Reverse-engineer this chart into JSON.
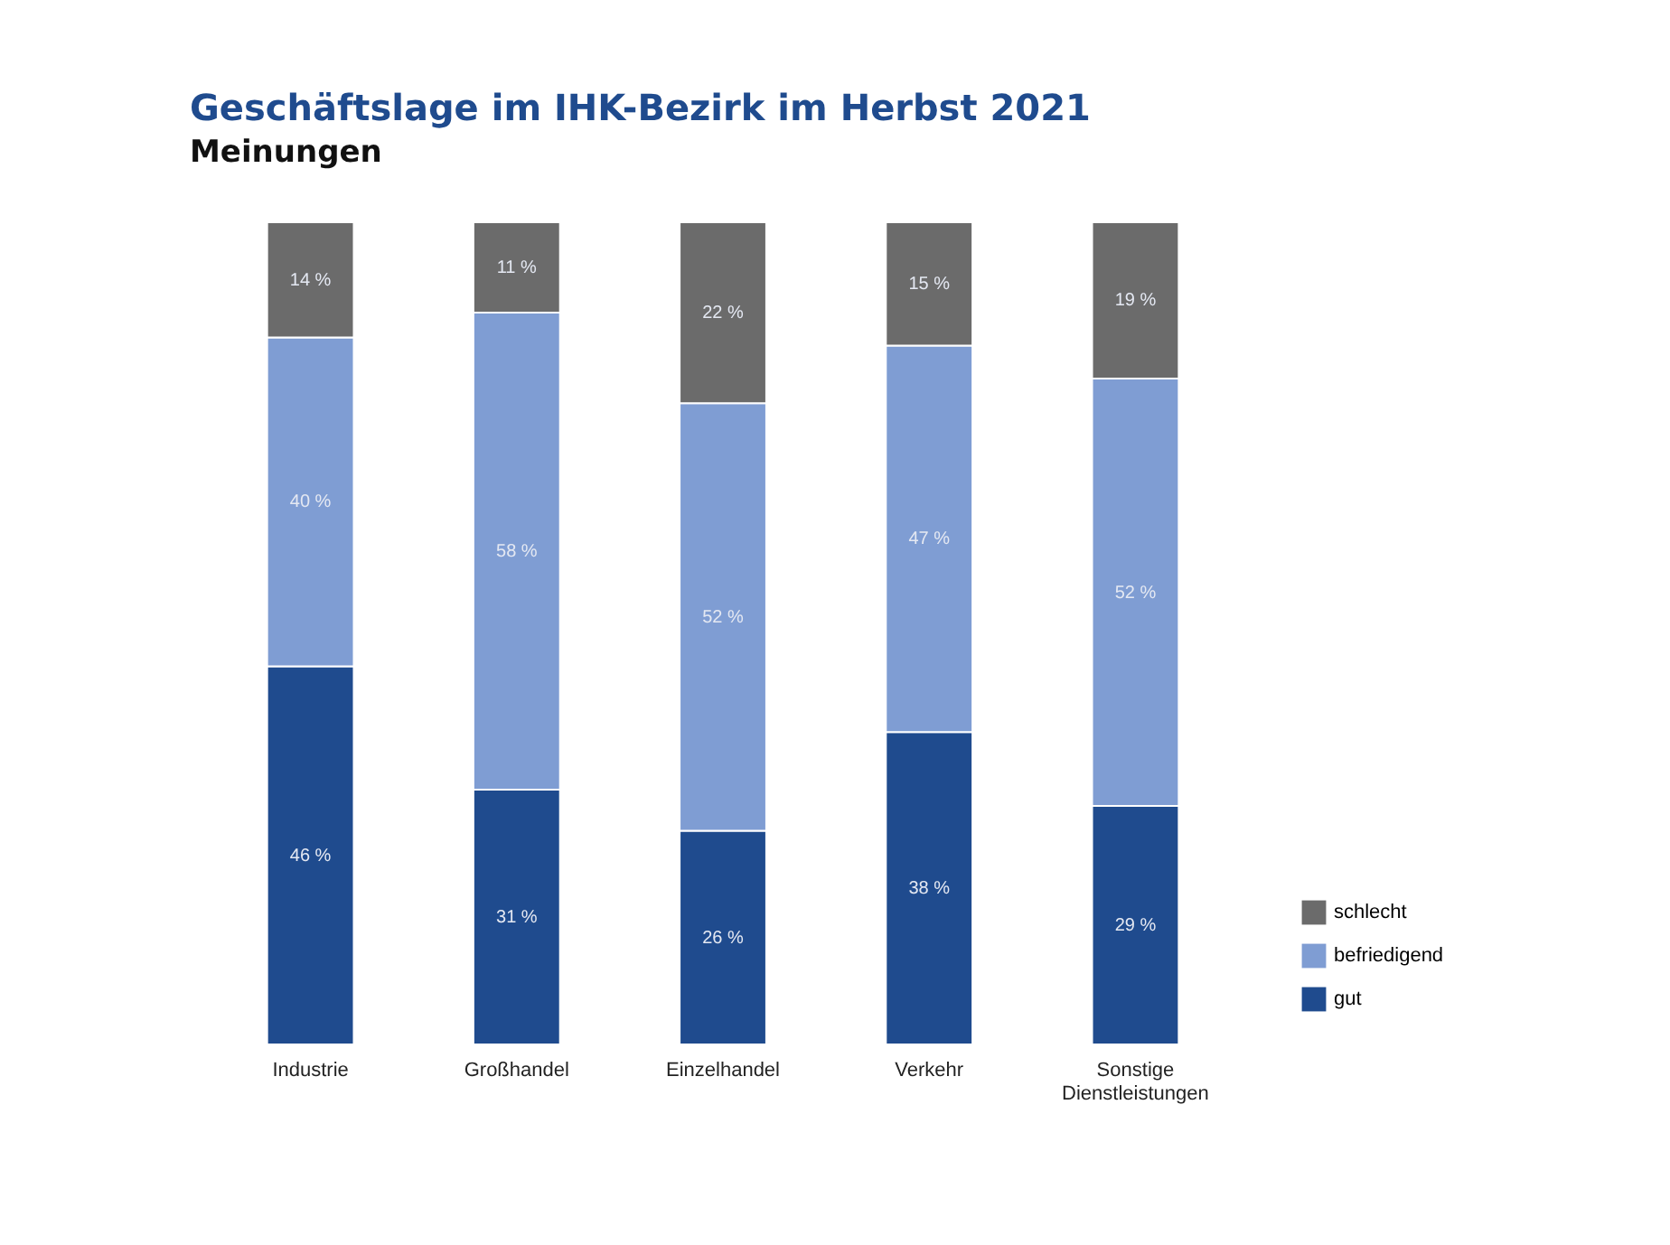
{
  "chart_data": {
    "type": "bar",
    "title": "Geschäftslage im IHK-Bezirk im Herbst 2021",
    "subtitle": "Meinungen",
    "categories": [
      "Industrie",
      "Großhandel",
      "Einzelhandel",
      "Verkehr",
      "Sonstige Dienstleistungen"
    ],
    "stacked": true,
    "legend": "bottom right",
    "series": [
      {
        "name": "gut",
        "color": "#1f4b8e",
        "values": [
          46,
          31,
          26,
          38,
          29
        ],
        "value_labels": [
          "46 %",
          "31 %",
          "26 %",
          "38 %",
          "29 %"
        ]
      },
      {
        "name": "befriedigend",
        "color": "#7f9dd3",
        "values": [
          40,
          58,
          52,
          47,
          52
        ],
        "value_labels": [
          "40 %",
          "58 %",
          "52 %",
          "47 %",
          "52 %"
        ]
      },
      {
        "name": "schlecht",
        "color": "#6b6b6b",
        "values": [
          14,
          11,
          22,
          15,
          19
        ],
        "value_labels": [
          "14 %",
          "11 %",
          "22 %",
          "15 %",
          "19 %"
        ]
      }
    ]
  }
}
